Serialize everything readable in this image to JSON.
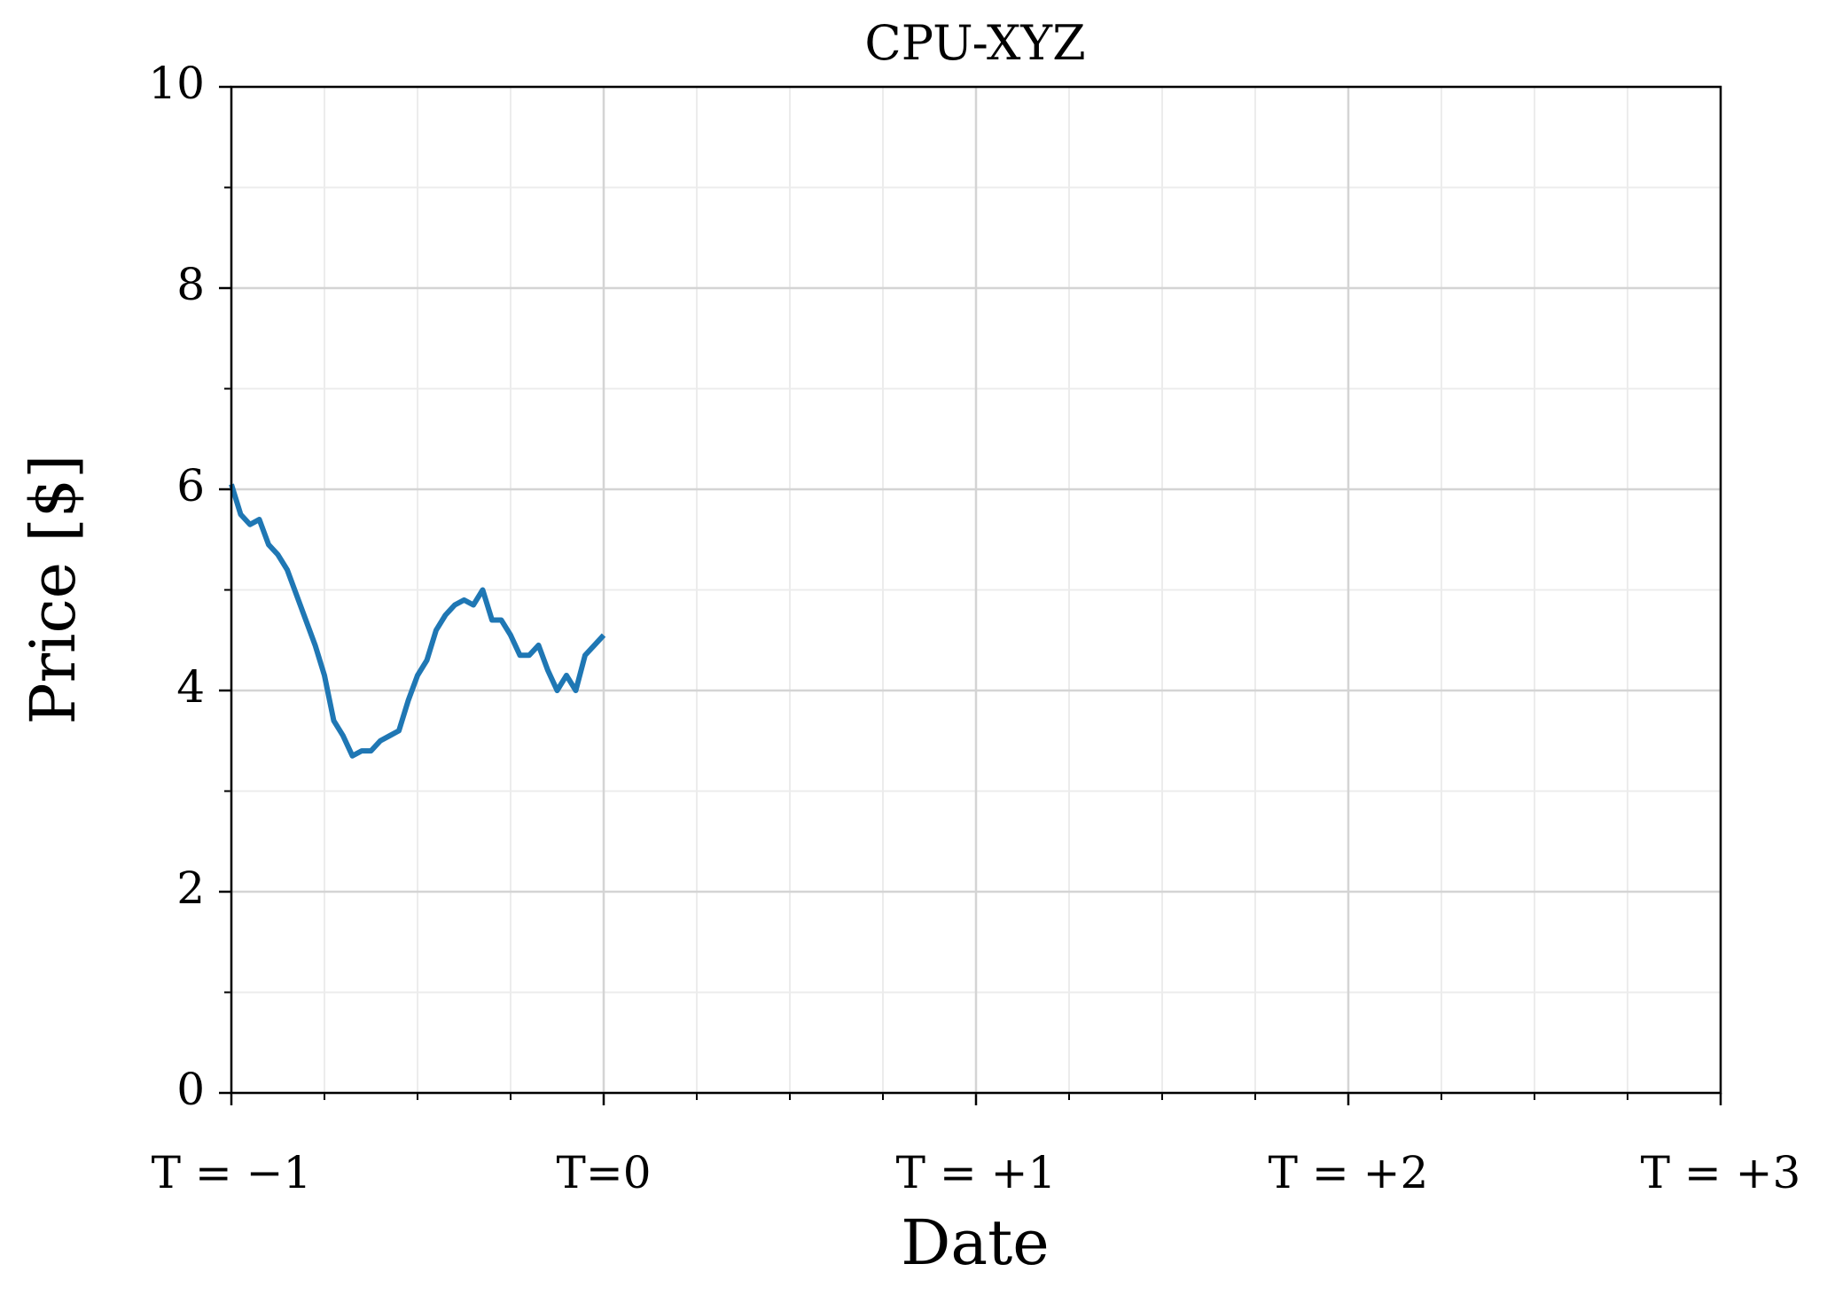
{
  "chart_data": {
    "type": "line",
    "title": "CPU-XYZ",
    "x_label": "Date",
    "y_label": "Price [$]",
    "x": [
      -1,
      -0.975,
      -0.95,
      -0.925,
      -0.9,
      -0.875,
      -0.85,
      -0.825,
      -0.8,
      -0.775,
      -0.75,
      -0.725,
      -0.7,
      -0.675,
      -0.65,
      -0.625,
      -0.6,
      -0.575,
      -0.55,
      -0.525,
      -0.5,
      -0.475,
      -0.45,
      -0.425,
      -0.4,
      -0.375,
      -0.35,
      -0.325,
      -0.3,
      -0.275,
      -0.25,
      -0.225,
      -0.2,
      -0.175,
      -0.15,
      -0.125,
      -0.1,
      -0.075,
      -0.05,
      -0.025,
      0
    ],
    "series": [
      {
        "color": "#1f77b4",
        "values": [
          6.05,
          5.75,
          5.65,
          5.7,
          5.45,
          5.35,
          5.2,
          4.95,
          4.7,
          4.45,
          4.15,
          3.7,
          3.55,
          3.35,
          3.4,
          3.4,
          3.5,
          3.55,
          3.6,
          3.9,
          4.15,
          4.3,
          4.6,
          4.75,
          4.85,
          4.9,
          4.85,
          5.0,
          4.7,
          4.7,
          4.55,
          4.35,
          4.35,
          4.45,
          4.2,
          4.0,
          4.15,
          4.0,
          4.35,
          4.45,
          4.55
        ]
      }
    ],
    "xlim": [
      -1,
      3
    ],
    "xticks": [
      {
        "value": -1,
        "label": "T = −1"
      },
      {
        "value": 0,
        "label": "T=0"
      },
      {
        "value": 1,
        "label": "T = +1"
      },
      {
        "value": 2,
        "label": "T = +2"
      },
      {
        "value": 3,
        "label": "T = +3"
      }
    ],
    "xminorticks": [
      -0.75,
      -0.5,
      -0.25,
      0.25,
      0.5,
      0.75,
      1.25,
      1.5,
      1.75,
      2.25,
      2.5,
      2.75
    ],
    "ylim": [
      0,
      10
    ],
    "yticks": [
      0,
      2,
      4,
      6,
      8,
      10
    ],
    "yminorticks": [
      1,
      3,
      5,
      7,
      9
    ],
    "grid": true
  }
}
